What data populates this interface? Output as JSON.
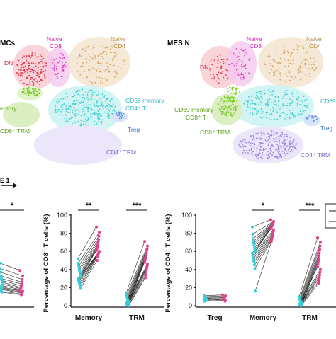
{
  "umap": {
    "left": {
      "title": "MCs",
      "labels": {
        "dn": "DN",
        "naive_cd8_1": "Naive",
        "naive_cd8_2": "CD8",
        "naive_cd4_1": "Naive",
        "naive_cd4_2": "CD4",
        "cd69_memory_cd4_1": "CD69 memory",
        "cd69_memory_cd4_2": "CD4⁺ T",
        "memory_cd8_partial": "emory",
        "cd8_trm": "CD8⁺ TRM",
        "treg": "Treg",
        "cd4_trm": "CD4⁺ TRM"
      }
    },
    "right": {
      "title": "MES N",
      "labels": {
        "dn": "DN",
        "naive_cd8_1": "Naive",
        "naive_cd8_2": "CD8",
        "naive_cd4_1": "Naive",
        "naive_cd4_2": "CD4",
        "cd69_memory_cd8_1": "CD69 memory",
        "cd69_memory_cd8_2": "CD8⁺ T",
        "cd69_memory_cd4_partial": "CD69",
        "cd8_trm": "CD8⁺ TRM",
        "treg": "Treg",
        "cd4_trm": "CD4⁺ TRM"
      }
    },
    "axis_label": "E 1",
    "colors": {
      "dn": "#e8384f",
      "naive_cd8": "#e040c0",
      "naive_cd4": "#d4a060",
      "memory": "#40d0d0",
      "cd8_trm": "#7cc820",
      "treg": "#5a8fe0",
      "cd4_trm": "#9a80e0"
    }
  },
  "chart_data": [
    {
      "type": "scatter",
      "panel": "left-partial",
      "significance": [
        "*"
      ],
      "series": [
        {
          "values": [
            47,
            41,
            37,
            33,
            30,
            28,
            26,
            24,
            22,
            21,
            20,
            19,
            18,
            16,
            15
          ]
        },
        {
          "values": [
            39,
            33,
            29,
            26,
            24,
            22,
            20,
            19,
            18,
            17,
            16,
            15,
            14,
            13,
            12
          ]
        }
      ]
    },
    {
      "type": "scatter",
      "panel": "cd8",
      "ylabel": "Percentage of CD8⁺ T cells (%)",
      "ylim": [
        0,
        100
      ],
      "yticks": [
        "0",
        "20",
        "40",
        "60",
        "80",
        "100"
      ],
      "categories": [
        "Memory",
        "TRM"
      ],
      "significance": [
        "**",
        "***"
      ],
      "groups": [
        {
          "category": "Memory",
          "pbmc": [
            52,
            47,
            44,
            41,
            39,
            37,
            35,
            33,
            32,
            30,
            29,
            28,
            27,
            25,
            23,
            21,
            19
          ],
          "mes": [
            87,
            81,
            77,
            73,
            70,
            67,
            65,
            64,
            62,
            61,
            60,
            59,
            58,
            57,
            56,
            54,
            50
          ]
        },
        {
          "category": "TRM",
          "pbmc": [
            14,
            12,
            10,
            8,
            7,
            6,
            5,
            4,
            3,
            3,
            2,
            2,
            1,
            1,
            1,
            0,
            0
          ],
          "mes": [
            71,
            66,
            63,
            61,
            58,
            56,
            54,
            52,
            50,
            48,
            46,
            44,
            42,
            40,
            37,
            34,
            31
          ]
        }
      ]
    },
    {
      "type": "scatter",
      "panel": "cd4",
      "ylabel": "Percentage of CD4⁺ T cells (%)",
      "ylim": [
        0,
        100
      ],
      "yticks": [
        "0",
        "20",
        "40",
        "60",
        "80",
        "100"
      ],
      "categories": [
        "Treg",
        "Memory",
        "TRM"
      ],
      "significance": [
        "",
        "*",
        "***"
      ],
      "groups": [
        {
          "category": "Treg",
          "pbmc": [
            11,
            10,
            9,
            9,
            8,
            8,
            7,
            7,
            6,
            6,
            5,
            5
          ],
          "mes": [
            12,
            11,
            10,
            10,
            9,
            9,
            8,
            8,
            7,
            7,
            6,
            5
          ]
        },
        {
          "category": "Memory",
          "pbmc": [
            87,
            79,
            74,
            71,
            69,
            67,
            64,
            62,
            60,
            58,
            56,
            54,
            52,
            50,
            48,
            45,
            41,
            16
          ],
          "mes": [
            95,
            93,
            92,
            91,
            90,
            89,
            88,
            87,
            86,
            85,
            84,
            82,
            80,
            78,
            76,
            74,
            72,
            70
          ]
        },
        {
          "category": "TRM",
          "pbmc": [
            10,
            8,
            7,
            6,
            5,
            4,
            4,
            3,
            3,
            2,
            2,
            1,
            1,
            1,
            0,
            0
          ],
          "mes": [
            75,
            70,
            66,
            62,
            58,
            55,
            52,
            49,
            46,
            43,
            40,
            37,
            34,
            31,
            28,
            25
          ]
        }
      ]
    }
  ],
  "colors": {
    "pbmc": "#34d0dc",
    "mes": "#e0408c",
    "line": "#222222"
  }
}
